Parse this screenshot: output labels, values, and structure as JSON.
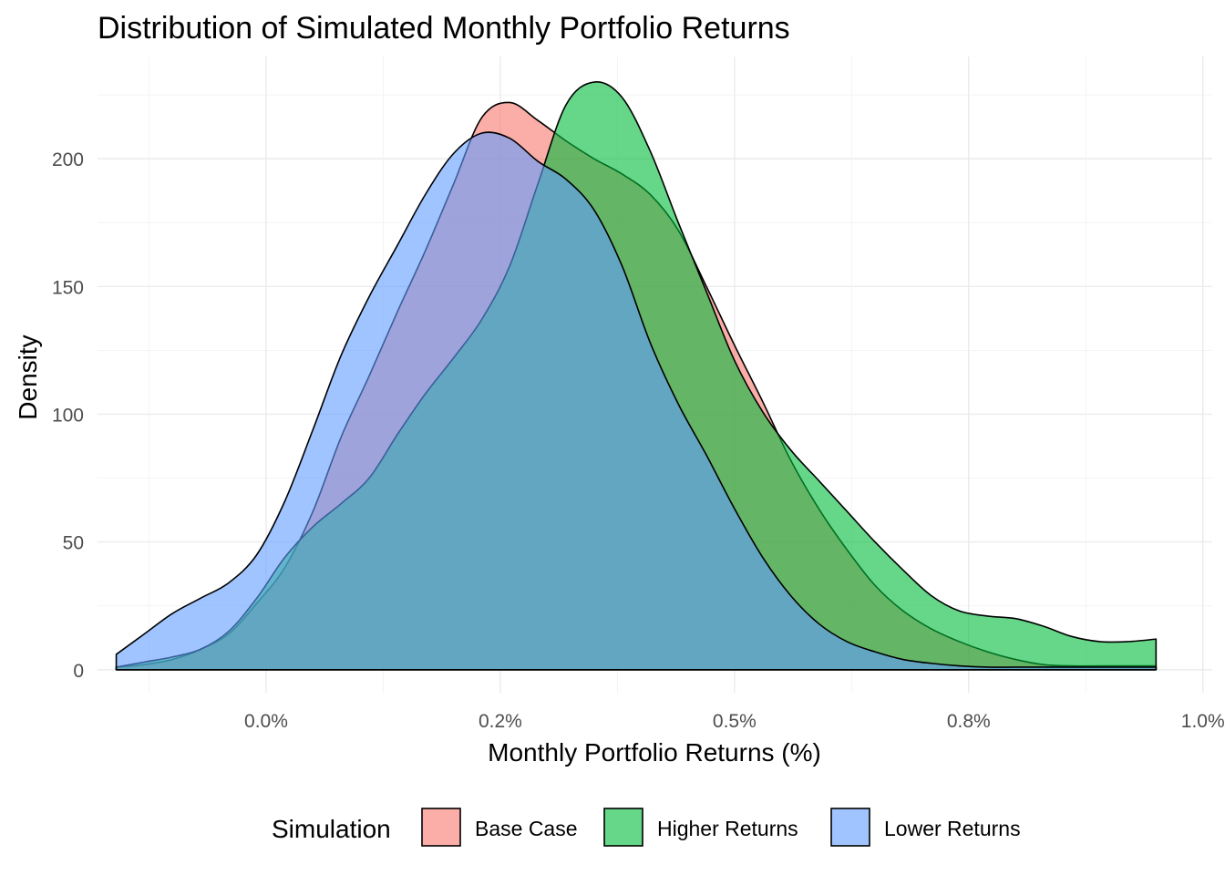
{
  "chart_data": {
    "type": "area",
    "title": "Distribution of Simulated Monthly Portfolio Returns",
    "xlabel": "Monthly Portfolio Returns (%)",
    "ylabel": "Density",
    "xlim": [
      -0.0018,
      0.0101
    ],
    "ylim": [
      -9,
      240
    ],
    "x_ticks": [
      0.0,
      0.0025,
      0.005,
      0.0075,
      0.01
    ],
    "x_tick_labels": [
      "0.0%",
      "0.2%",
      "0.5%",
      "0.8%",
      "1.0%"
    ],
    "y_ticks": [
      0,
      50,
      100,
      150,
      200
    ],
    "y_tick_labels": [
      "0",
      "50",
      "100",
      "150",
      "200"
    ],
    "grid": true,
    "legend": {
      "title": "Simulation",
      "position": "bottom",
      "entries": [
        "Base Case",
        "Higher Returns",
        "Lower Returns"
      ]
    },
    "series": [
      {
        "name": "Base Case",
        "color": "#F8766D",
        "x": [
          -0.0016,
          -0.0013,
          -0.001,
          -0.0007,
          -0.0004,
          -0.0001,
          0.0002,
          0.0005,
          0.0008,
          0.0011,
          0.0014,
          0.0017,
          0.002,
          0.0023,
          0.0026,
          0.0029,
          0.0032,
          0.0035,
          0.0038,
          0.0041,
          0.0044,
          0.0047,
          0.005,
          0.0053,
          0.0056,
          0.0059,
          0.0062,
          0.0065,
          0.0068,
          0.0071,
          0.0074,
          0.0077,
          0.008,
          0.0083,
          0.0086,
          0.0089,
          0.0092,
          0.0095
        ],
        "values": [
          1,
          2,
          4,
          8,
          14,
          26,
          40,
          62,
          91,
          115,
          140,
          164,
          190,
          216,
          222,
          215,
          207,
          200,
          194,
          186,
          172,
          150,
          127,
          105,
          82,
          63,
          47,
          33,
          23,
          16,
          11,
          7,
          4,
          2,
          1.5,
          1.5,
          1.5,
          1.5
        ]
      },
      {
        "name": "Higher Returns",
        "color": "#00BA38",
        "x": [
          -0.0016,
          -0.0013,
          -0.001,
          -0.0007,
          -0.0004,
          -0.0001,
          0.0002,
          0.0005,
          0.0008,
          0.0011,
          0.0014,
          0.0017,
          0.002,
          0.0023,
          0.0026,
          0.0029,
          0.0032,
          0.0035,
          0.0038,
          0.0041,
          0.0044,
          0.0047,
          0.005,
          0.0053,
          0.0056,
          0.0059,
          0.0062,
          0.0065,
          0.0068,
          0.0071,
          0.0074,
          0.0077,
          0.008,
          0.0083,
          0.0086,
          0.0089,
          0.0092,
          0.0095
        ],
        "values": [
          1,
          3,
          5,
          8,
          15,
          28,
          44,
          56,
          65,
          75,
          92,
          108,
          122,
          137,
          158,
          190,
          221,
          230,
          224,
          203,
          175,
          148,
          121,
          101,
          86,
          74,
          62,
          50,
          39,
          29,
          23,
          21,
          20,
          17,
          13,
          11,
          11,
          12
        ]
      },
      {
        "name": "Lower Returns",
        "color": "#619CFF",
        "x": [
          -0.0016,
          -0.0013,
          -0.001,
          -0.0007,
          -0.0004,
          -0.0001,
          0.0002,
          0.0005,
          0.0008,
          0.0011,
          0.0014,
          0.0017,
          0.002,
          0.0023,
          0.0026,
          0.0029,
          0.0032,
          0.0035,
          0.0038,
          0.0041,
          0.0044,
          0.0047,
          0.005,
          0.0053,
          0.0056,
          0.0059,
          0.0062,
          0.0065,
          0.0068,
          0.0071,
          0.0074,
          0.0077,
          0.008,
          0.0083,
          0.0086,
          0.0089,
          0.0092,
          0.0095
        ],
        "values": [
          6,
          14,
          22,
          28,
          34,
          45,
          66,
          94,
          123,
          146,
          166,
          186,
          202,
          210,
          208,
          199,
          192,
          180,
          158,
          128,
          104,
          84,
          63,
          44,
          29,
          18,
          11,
          7,
          4,
          2.5,
          1.5,
          1,
          1,
          1,
          1,
          1,
          1,
          1
        ]
      }
    ]
  }
}
